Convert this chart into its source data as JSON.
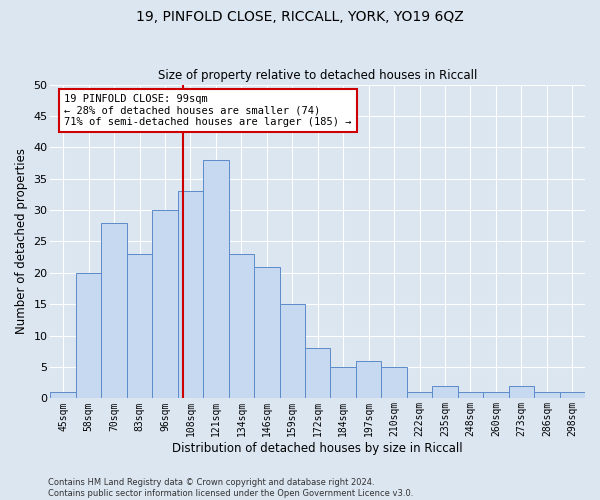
{
  "title": "19, PINFOLD CLOSE, RICCALL, YORK, YO19 6QZ",
  "subtitle": "Size of property relative to detached houses in Riccall",
  "xlabel": "Distribution of detached houses by size in Riccall",
  "ylabel": "Number of detached properties",
  "categories": [
    "45sqm",
    "58sqm",
    "70sqm",
    "83sqm",
    "96sqm",
    "108sqm",
    "121sqm",
    "134sqm",
    "146sqm",
    "159sqm",
    "172sqm",
    "184sqm",
    "197sqm",
    "210sqm",
    "222sqm",
    "235sqm",
    "248sqm",
    "260sqm",
    "273sqm",
    "286sqm",
    "298sqm"
  ],
  "values": [
    1,
    20,
    28,
    23,
    30,
    33,
    38,
    23,
    21,
    15,
    8,
    5,
    6,
    5,
    1,
    2,
    1,
    1,
    2,
    1,
    1
  ],
  "bar_color": "#c6d9f0",
  "bar_edge_color": "#5b8bc9",
  "background_color": "#dce6f1",
  "grid_color": "#ffffff",
  "annotation_text_line1": "19 PINFOLD CLOSE: 99sqm",
  "annotation_text_line2": "← 28% of detached houses are smaller (74)",
  "annotation_text_line3": "71% of semi-detached houses are larger (185) →",
  "annotation_line_color": "#cc0000",
  "ylim": [
    0,
    50
  ],
  "yticks": [
    0,
    5,
    10,
    15,
    20,
    25,
    30,
    35,
    40,
    45,
    50
  ],
  "footer_line1": "Contains HM Land Registry data © Crown copyright and database right 2024.",
  "footer_line2": "Contains public sector information licensed under the Open Government Licence v3.0."
}
